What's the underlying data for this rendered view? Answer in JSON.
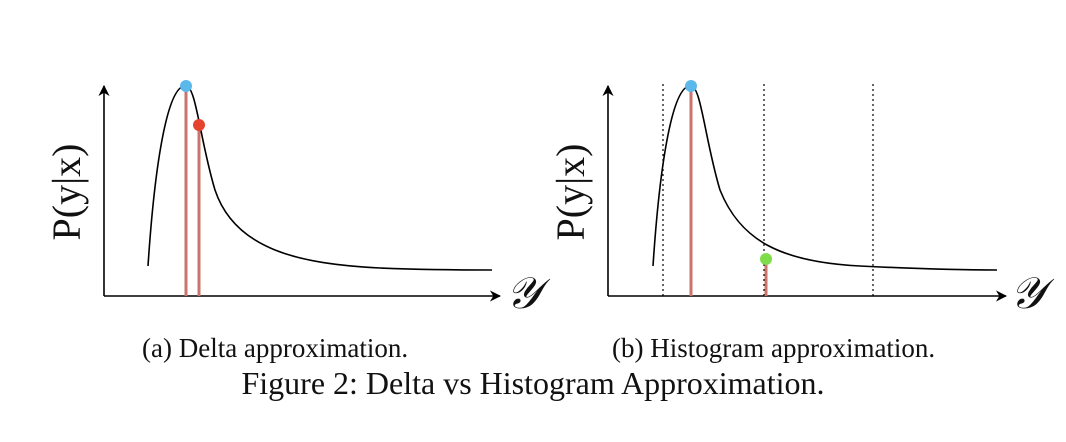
{
  "panels": [
    {
      "id": "a",
      "caption": "(a) Delta approximation.",
      "y_label": "P(y|x)",
      "x_label": "𝒴"
    },
    {
      "id": "b",
      "caption": "(b) Histogram approximation.",
      "y_label": "P(y|x)",
      "x_label": "𝒴"
    }
  ],
  "figure_caption": "Figure 2: Delta vs Histogram Approximation.",
  "colors": {
    "curve": "#000000",
    "stem": "#c9756d",
    "mode_point": "#5bb8ea",
    "sample_point_a": "#e5432d",
    "sample_point_b": "#7fdc4a",
    "bin_lines": "#000000"
  }
}
